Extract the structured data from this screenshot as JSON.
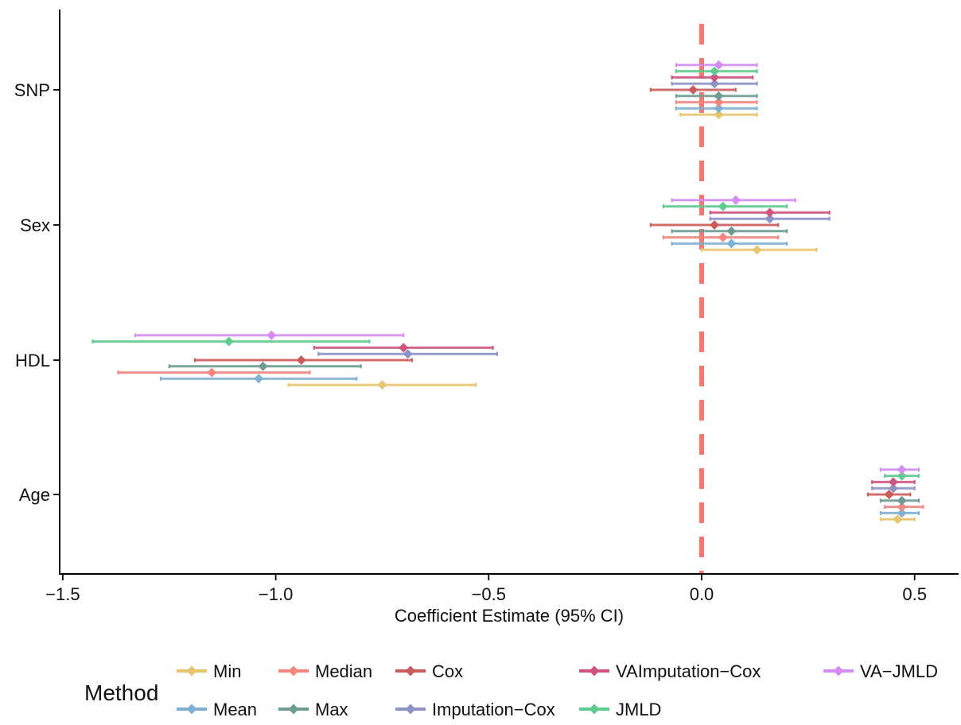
{
  "chart_data": {
    "type": "forest",
    "xlabel": "Coefficient Estimate (95% CI)",
    "ylabel": "",
    "xlim": [
      -1.53,
      0.62
    ],
    "x_ticks": [
      -1.5,
      -1.0,
      -0.5,
      0.0,
      0.5
    ],
    "x_tick_labels": [
      "−1.5",
      "−1.0",
      "−0.5",
      "0.0",
      "0.5"
    ],
    "categories": [
      "Age",
      "HDL",
      "Sex",
      "SNP"
    ],
    "reference_line": 0.0,
    "reference_line_color": "#f8766d",
    "grid": false,
    "legend_title": "Method",
    "legend_position": "bottom",
    "series": [
      {
        "name": "Min",
        "color": "#e7c46e",
        "points": [
          {
            "category": "SNP",
            "estimate": 0.04,
            "lower": -0.05,
            "upper": 0.13
          },
          {
            "category": "Sex",
            "estimate": 0.13,
            "lower": 0.0,
            "upper": 0.27
          },
          {
            "category": "HDL",
            "estimate": -0.75,
            "lower": -0.97,
            "upper": -0.53
          },
          {
            "category": "Age",
            "estimate": 0.46,
            "lower": 0.42,
            "upper": 0.5
          }
        ]
      },
      {
        "name": "Mean",
        "color": "#7fb1d3",
        "points": [
          {
            "category": "SNP",
            "estimate": 0.04,
            "lower": -0.06,
            "upper": 0.13
          },
          {
            "category": "Sex",
            "estimate": 0.07,
            "lower": -0.07,
            "upper": 0.2
          },
          {
            "category": "HDL",
            "estimate": -1.04,
            "lower": -1.27,
            "upper": -0.81
          },
          {
            "category": "Age",
            "estimate": 0.47,
            "lower": 0.42,
            "upper": 0.51
          }
        ]
      },
      {
        "name": "Median",
        "color": "#f4857f",
        "points": [
          {
            "category": "SNP",
            "estimate": 0.04,
            "lower": -0.06,
            "upper": 0.13
          },
          {
            "category": "Sex",
            "estimate": 0.05,
            "lower": -0.09,
            "upper": 0.18
          },
          {
            "category": "HDL",
            "estimate": -1.15,
            "lower": -1.37,
            "upper": -0.92
          },
          {
            "category": "Age",
            "estimate": 0.47,
            "lower": 0.43,
            "upper": 0.52
          }
        ]
      },
      {
        "name": "Max",
        "color": "#6e9c94",
        "points": [
          {
            "category": "SNP",
            "estimate": 0.04,
            "lower": -0.06,
            "upper": 0.13
          },
          {
            "category": "Sex",
            "estimate": 0.07,
            "lower": -0.07,
            "upper": 0.2
          },
          {
            "category": "HDL",
            "estimate": -1.03,
            "lower": -1.25,
            "upper": -0.8
          },
          {
            "category": "Age",
            "estimate": 0.47,
            "lower": 0.42,
            "upper": 0.51
          }
        ]
      },
      {
        "name": "Cox",
        "color": "#cc5c5c",
        "points": [
          {
            "category": "SNP",
            "estimate": -0.02,
            "lower": -0.12,
            "upper": 0.08
          },
          {
            "category": "Sex",
            "estimate": 0.03,
            "lower": -0.12,
            "upper": 0.18
          },
          {
            "category": "HDL",
            "estimate": -0.94,
            "lower": -1.19,
            "upper": -0.68
          },
          {
            "category": "Age",
            "estimate": 0.44,
            "lower": 0.39,
            "upper": 0.49
          }
        ]
      },
      {
        "name": "Imputation−Cox",
        "color": "#8d93c6",
        "points": [
          {
            "category": "SNP",
            "estimate": 0.03,
            "lower": -0.07,
            "upper": 0.13
          },
          {
            "category": "Sex",
            "estimate": 0.16,
            "lower": 0.02,
            "upper": 0.3
          },
          {
            "category": "HDL",
            "estimate": -0.69,
            "lower": -0.9,
            "upper": -0.48
          },
          {
            "category": "Age",
            "estimate": 0.45,
            "lower": 0.4,
            "upper": 0.5
          }
        ]
      },
      {
        "name": "VAImputation−Cox",
        "color": "#cf5580",
        "points": [
          {
            "category": "SNP",
            "estimate": 0.03,
            "lower": -0.07,
            "upper": 0.12
          },
          {
            "category": "Sex",
            "estimate": 0.16,
            "lower": 0.02,
            "upper": 0.3
          },
          {
            "category": "HDL",
            "estimate": -0.7,
            "lower": -0.91,
            "upper": -0.49
          },
          {
            "category": "Age",
            "estimate": 0.45,
            "lower": 0.4,
            "upper": 0.5
          }
        ]
      },
      {
        "name": "JMLD",
        "color": "#5fcb8f",
        "points": [
          {
            "category": "SNP",
            "estimate": 0.03,
            "lower": -0.06,
            "upper": 0.13
          },
          {
            "category": "Sex",
            "estimate": 0.05,
            "lower": -0.09,
            "upper": 0.2
          },
          {
            "category": "HDL",
            "estimate": -1.11,
            "lower": -1.43,
            "upper": -0.78
          },
          {
            "category": "Age",
            "estimate": 0.47,
            "lower": 0.43,
            "upper": 0.51
          }
        ]
      },
      {
        "name": "VA−JMLD",
        "color": "#d58cf4",
        "points": [
          {
            "category": "SNP",
            "estimate": 0.04,
            "lower": -0.06,
            "upper": 0.13
          },
          {
            "category": "Sex",
            "estimate": 0.08,
            "lower": -0.07,
            "upper": 0.22
          },
          {
            "category": "HDL",
            "estimate": -1.01,
            "lower": -1.33,
            "upper": -0.7
          },
          {
            "category": "Age",
            "estimate": 0.47,
            "lower": 0.42,
            "upper": 0.51
          }
        ]
      }
    ],
    "legend_rows": [
      [
        "Min",
        "Median",
        "Cox",
        "VAImputation−Cox",
        "VA−JMLD"
      ],
      [
        "Mean",
        "Max",
        "Imputation−Cox",
        "JMLD"
      ]
    ]
  }
}
